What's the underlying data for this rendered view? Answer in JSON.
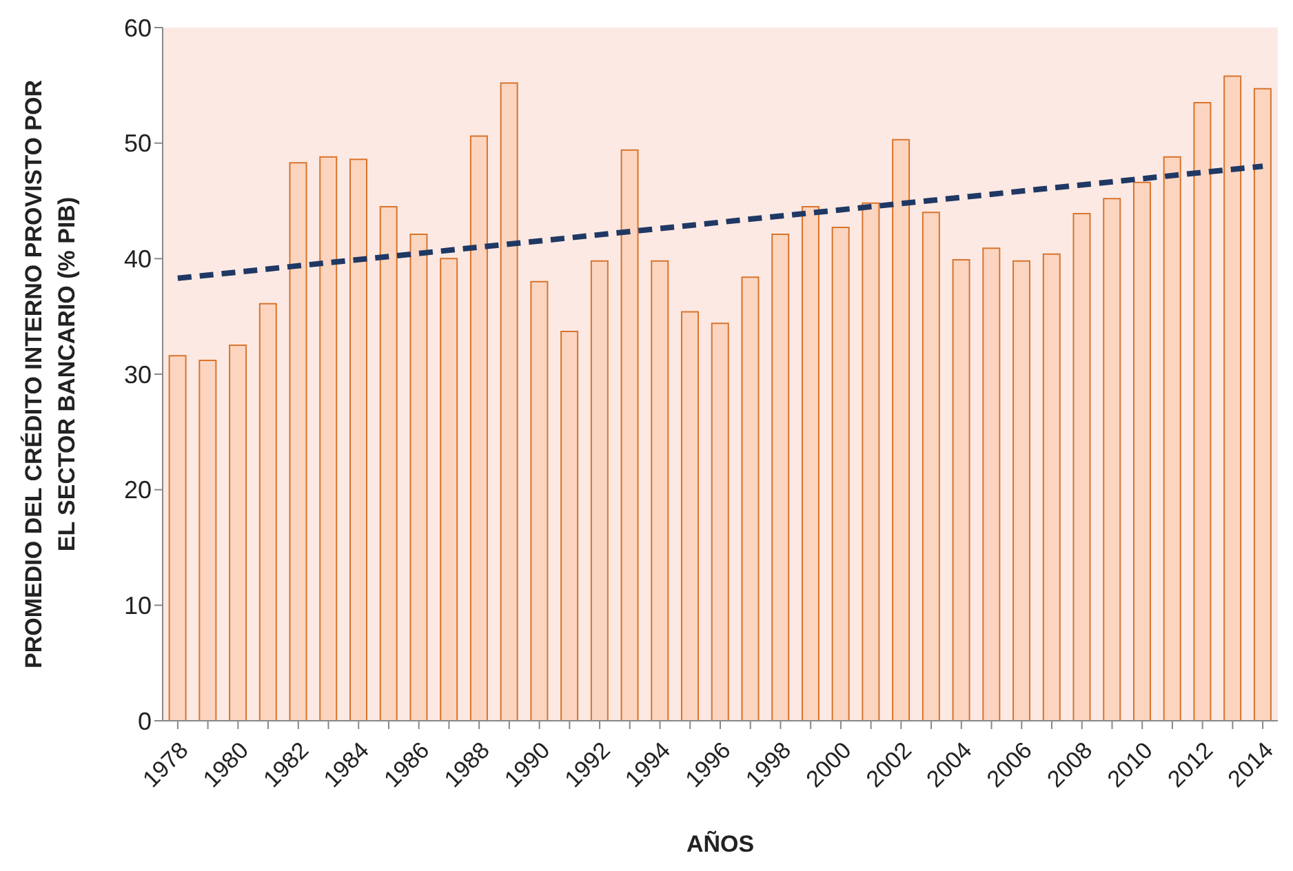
{
  "chart_data": {
    "type": "bar",
    "xlabel": "AÑOS",
    "ylabel": "PROMEDIO DEL CRÉDITO INTERNO PROVISTO POR EL SECTOR BANCARIO (% PIB)",
    "categories": [
      "1978",
      null,
      "1980",
      null,
      "1982",
      null,
      "1984",
      null,
      "1986",
      null,
      "1988",
      null,
      "1990",
      null,
      "1992",
      null,
      "1994",
      null,
      "1996",
      null,
      "1998",
      null,
      "2000",
      null,
      "2002",
      null,
      "2004",
      null,
      "2006",
      null,
      "2008",
      null,
      "2010",
      null,
      "2012",
      null,
      "2014"
    ],
    "series": [
      {
        "color": "#fbd5c0",
        "values": [
          31.6,
          31.2,
          32.5,
          36.1,
          48.3,
          48.8,
          48.6,
          44.5,
          42.1,
          40.0,
          50.6,
          55.2,
          38.0,
          33.7,
          39.8,
          49.4,
          39.8,
          35.4,
          34.4,
          38.4,
          42.1,
          44.5,
          42.7,
          44.8,
          50.3,
          44.0,
          39.9,
          40.9,
          39.8,
          40.4,
          43.9,
          45.2,
          46.6,
          48.8,
          53.5,
          55.8,
          54.7
        ]
      },
      {
        "type": "line",
        "color": "#1f3864",
        "line_style": "dashed",
        "values": [
          38.3,
          null,
          null,
          null,
          null,
          null,
          null,
          null,
          null,
          null,
          null,
          null,
          null,
          null,
          null,
          null,
          null,
          null,
          null,
          null,
          null,
          null,
          null,
          null,
          null,
          null,
          null,
          null,
          null,
          null,
          null,
          null,
          null,
          null,
          null,
          null,
          48.0
        ]
      }
    ],
    "ylim": [
      0,
      60
    ],
    "yticks": [
      0,
      10,
      20,
      30,
      40,
      50,
      60
    ],
    "grid": false,
    "legend": false
  }
}
